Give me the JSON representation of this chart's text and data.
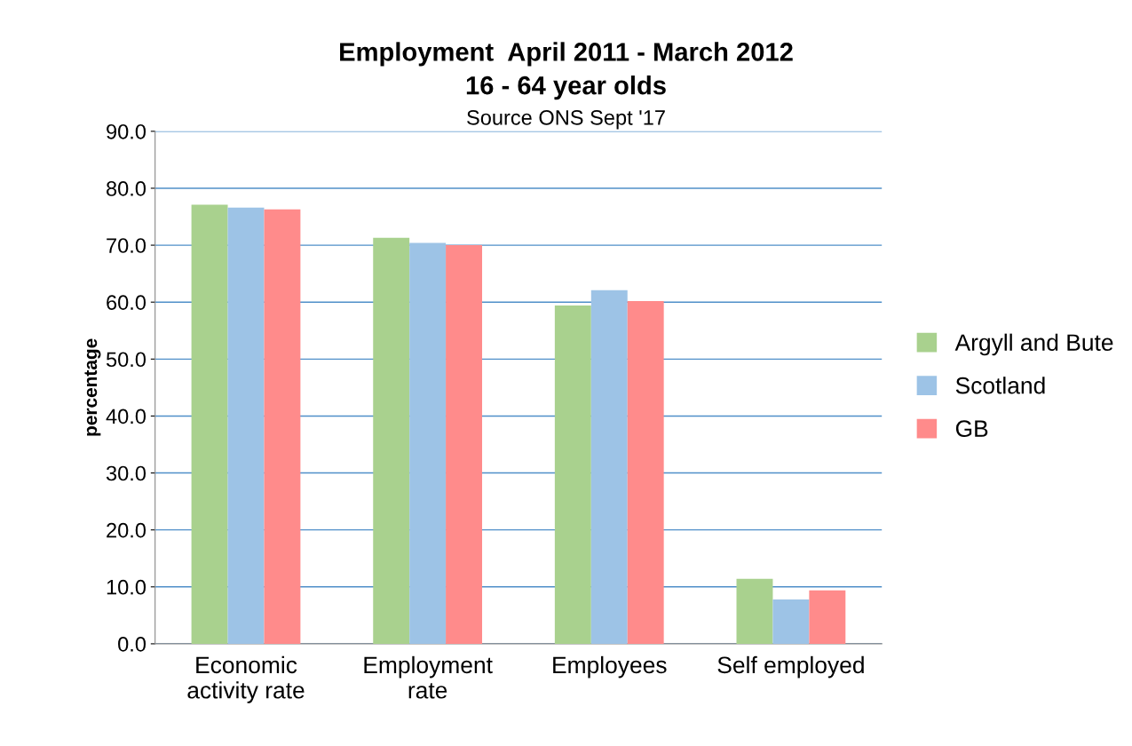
{
  "chart_data": {
    "type": "bar",
    "title": "Employment  April 2011 - March 2012\n16 - 64 year olds",
    "subtitle": "Source ONS Sept '17",
    "ylabel": "percentage",
    "categories": [
      "Economic\nactivity rate",
      "Employment\nrate",
      "Employees",
      "Self employed"
    ],
    "series": [
      {
        "name": "Argyll and Bute",
        "color": "#a9d18e",
        "values": [
          77.1,
          71.3,
          59.4,
          11.4
        ]
      },
      {
        "name": "Scotland",
        "color": "#9dc3e6",
        "values": [
          76.6,
          70.4,
          62.1,
          7.8
        ]
      },
      {
        "name": "GB",
        "color": "#ff8b8b",
        "values": [
          76.3,
          70.0,
          60.2,
          9.4
        ]
      }
    ],
    "ylim": [
      0,
      90
    ],
    "yticks": [
      {
        "value": 0,
        "label": "0.0"
      },
      {
        "value": 10,
        "label": "10.0"
      },
      {
        "value": 20,
        "label": "20.0"
      },
      {
        "value": 30,
        "label": "30.0"
      },
      {
        "value": 40,
        "label": "40.0"
      },
      {
        "value": 50,
        "label": "50.0"
      },
      {
        "value": 60,
        "label": "60.0"
      },
      {
        "value": 70,
        "label": "70.0"
      },
      {
        "value": 80,
        "label": "80.0"
      },
      {
        "value": 90,
        "label": "90.0"
      }
    ],
    "grid": "y",
    "legend": "right"
  }
}
